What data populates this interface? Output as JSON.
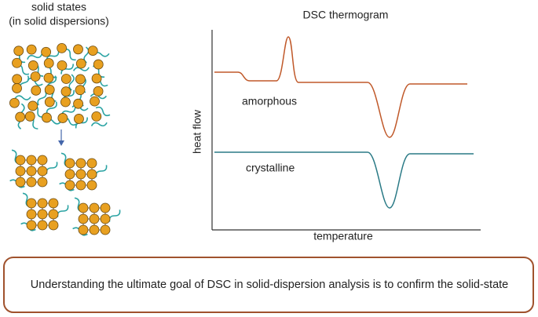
{
  "left_panel": {
    "title_line1": "solid states",
    "title_line2": "(in solid dispersions)"
  },
  "thermogram": {
    "title": "DSC thermogram",
    "y_axis_label": "heat flow",
    "x_axis_label": "temperature",
    "curves": [
      {
        "label": "amorphous"
      },
      {
        "label": "crystalline"
      }
    ]
  },
  "caption": "Understanding the ultimate goal of DSC in solid-dispersion analysis is to confirm the solid-state"
}
